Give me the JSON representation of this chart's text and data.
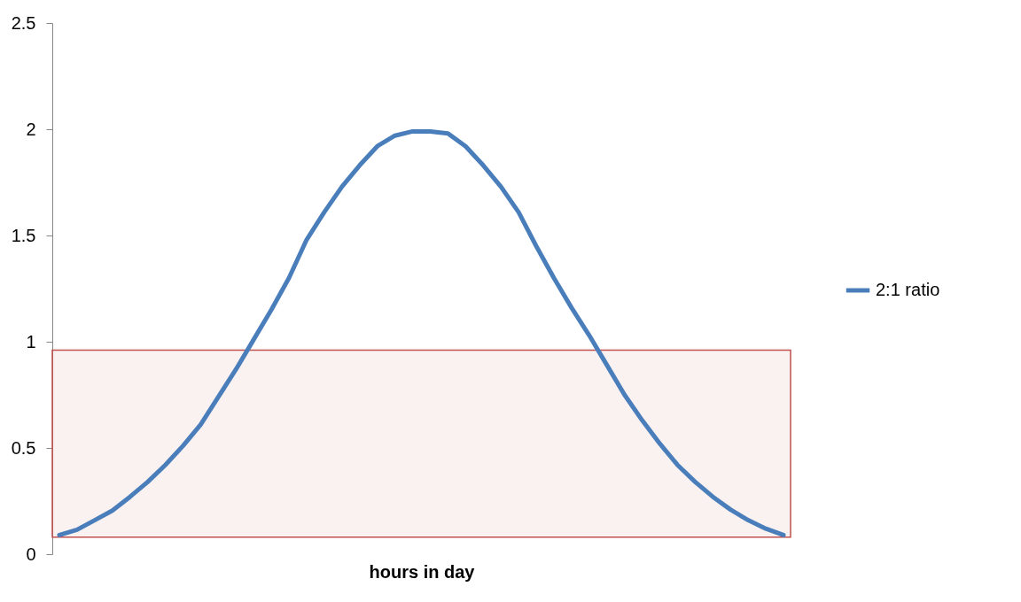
{
  "chart_data": {
    "type": "line",
    "xlabel": "hours in day",
    "categories": [
      null,
      null,
      null,
      null,
      null,
      null,
      null,
      null,
      null,
      null,
      null,
      null,
      null,
      null,
      null,
      null,
      null,
      null,
      null,
      null,
      null,
      null,
      null,
      null,
      null,
      null,
      null,
      null,
      null,
      null,
      null,
      null,
      null,
      null,
      null,
      null,
      null,
      null,
      null,
      null,
      null,
      null
    ],
    "series": [
      {
        "name": "2:1 ratio",
        "color": "#4a7ebb",
        "values": [
          0.09,
          0.115,
          0.16,
          0.205,
          0.27,
          0.34,
          0.42,
          0.51,
          0.61,
          0.74,
          0.87,
          1.01,
          1.15,
          1.3,
          1.48,
          1.61,
          1.73,
          1.83,
          1.92,
          1.97,
          1.99,
          1.99,
          1.98,
          1.92,
          1.83,
          1.73,
          1.61,
          1.45,
          1.3,
          1.16,
          1.03,
          0.89,
          0.75,
          0.63,
          0.52,
          0.42,
          0.34,
          0.27,
          0.21,
          0.16,
          0.12,
          0.09
        ]
      }
    ],
    "ylim": [
      0,
      2.5
    ],
    "yticks": [
      0,
      0.5,
      1,
      1.5,
      2,
      2.5
    ],
    "bands": [
      {
        "axis": "y",
        "from": 0.08,
        "to": 0.96,
        "color": "#c0504d"
      }
    ],
    "grid": false,
    "legend": "right",
    "marker": "none",
    "line_style": "solid"
  }
}
